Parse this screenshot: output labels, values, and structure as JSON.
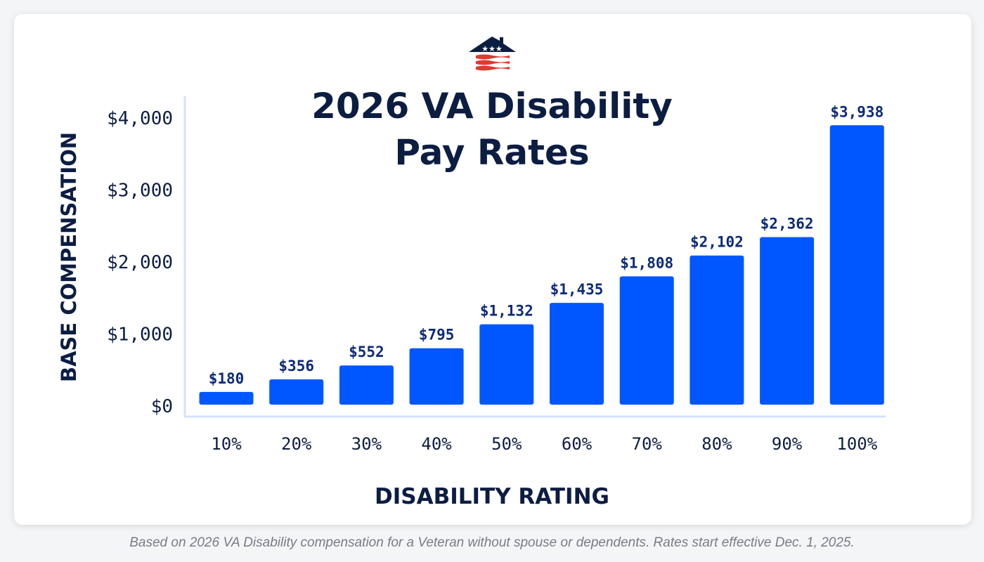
{
  "chart_data": {
    "type": "bar",
    "title": "2026 VA Disability Pay Rates",
    "title_lines": [
      "2026 VA Disability",
      "Pay Rates"
    ],
    "xlabel": "DISABILITY RATING",
    "ylabel": "BASE COMPENSATION",
    "categories": [
      "10%",
      "20%",
      "30%",
      "40%",
      "50%",
      "60%",
      "70%",
      "80%",
      "90%",
      "100%"
    ],
    "values": [
      180,
      356,
      552,
      795,
      1132,
      1435,
      1808,
      2102,
      2362,
      3938
    ],
    "data_labels": [
      "$180",
      "$356",
      "$552",
      "$795",
      "$1,132",
      "$1,435",
      "$1,808",
      "$2,102",
      "$2,362",
      "$3,938"
    ],
    "yticks": [
      0,
      1000,
      2000,
      3000,
      4000
    ],
    "ytick_labels": [
      "$0",
      "$1,000",
      "$2,000",
      "$3,000",
      "$4,000"
    ],
    "ylim": [
      0,
      4000
    ],
    "grid": false,
    "colors": {
      "bar": "#0057ff",
      "label": "#0b2a78",
      "text": "#0c1d42",
      "axis": "#d3e3fb"
    }
  },
  "logo": {
    "name": "house-flag-logo"
  },
  "caption": "Based on 2026 VA Disability compensation for a Veteran without spouse or dependents. Rates start effective Dec. 1, 2025."
}
